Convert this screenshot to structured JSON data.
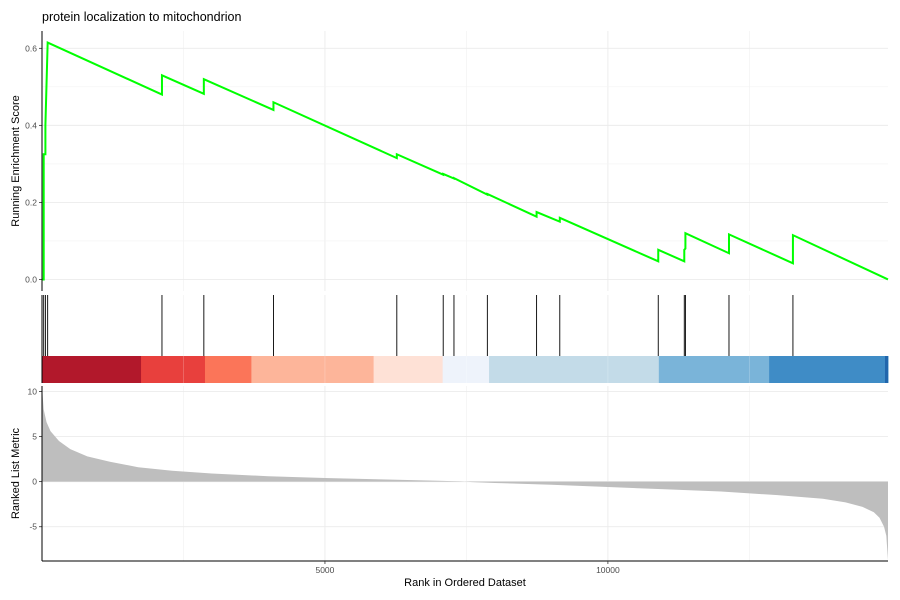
{
  "chart_data": {
    "type": "line",
    "title": "protein localization to mitochondrion",
    "xlabel": "Rank in Ordered Dataset",
    "xlim": [
      0,
      14950
    ],
    "x_ticks": [
      5000,
      10000
    ],
    "x_tick_labels": [
      "5000",
      "10000"
    ],
    "grid": true,
    "colors": {
      "running_score": "#00ff00",
      "hit_line": "#000000",
      "ranked_area": "#bebebe",
      "gradient_bands": [
        "#b2182b",
        "#e8403d",
        "#fb7559",
        "#fdb59a",
        "#fee1d6",
        "#eef3fb",
        "#c3dbe8",
        "#7ab4d9",
        "#3f8cc6",
        "#2166ac"
      ]
    },
    "enrichment": {
      "ylabel": "Running Enrichment Score",
      "ylim": [
        -0.03,
        0.645
      ],
      "y_ticks": [
        0.0,
        0.2,
        0.4,
        0.6
      ],
      "y_tick_labels": [
        "0.0",
        "0.2",
        "0.4",
        "0.6"
      ],
      "series": [
        {
          "x": [
            0,
            30,
            30,
            60,
            60,
            100,
            2120,
            2120,
            2860,
            2860,
            4090,
            4090,
            6270,
            6270,
            7090,
            7090,
            7280,
            7280,
            7870,
            7870,
            8740,
            8740,
            9150,
            9150,
            10890,
            10890,
            11350,
            11350,
            11370,
            11370,
            12140,
            12140,
            13270,
            13270,
            14950
          ],
          "y": [
            0.0,
            0.0,
            0.325,
            0.325,
            0.4,
            0.615,
            0.48,
            0.53,
            0.482,
            0.52,
            0.44,
            0.46,
            0.315,
            0.325,
            0.272,
            0.274,
            0.262,
            0.263,
            0.22,
            0.222,
            0.163,
            0.175,
            0.15,
            0.16,
            0.047,
            0.077,
            0.047,
            0.077,
            0.08,
            0.12,
            0.068,
            0.117,
            0.042,
            0.115,
            0.0
          ]
        }
      ]
    },
    "hits": {
      "x": [
        30,
        60,
        100,
        2120,
        2860,
        4090,
        6270,
        7090,
        7280,
        7870,
        8740,
        9150,
        10890,
        11350,
        11370,
        12140,
        13270
      ]
    },
    "ranked_metric": {
      "ylabel": "Ranked List Metric",
      "ylim": [
        -8.8,
        10.6
      ],
      "y_ticks": [
        -5,
        0,
        5,
        10
      ],
      "y_tick_labels": [
        "-5",
        "0",
        "5",
        "10"
      ],
      "x": [
        0,
        30,
        80,
        150,
        300,
        500,
        800,
        1200,
        1700,
        2300,
        3000,
        4000,
        5000,
        6000,
        7000,
        7400,
        7600,
        8000,
        9000,
        10000,
        11000,
        12000,
        13000,
        13800,
        14200,
        14500,
        14700,
        14800,
        14880,
        14920,
        14950
      ],
      "y": [
        10.5,
        8.0,
        6.6,
        5.6,
        4.5,
        3.6,
        2.8,
        2.2,
        1.6,
        1.2,
        0.9,
        0.6,
        0.4,
        0.25,
        0.1,
        0.03,
        -0.05,
        -0.15,
        -0.35,
        -0.6,
        -0.85,
        -1.1,
        -1.5,
        -1.9,
        -2.3,
        -2.8,
        -3.4,
        -4.0,
        -5.0,
        -6.0,
        -8.7
      ]
    }
  }
}
